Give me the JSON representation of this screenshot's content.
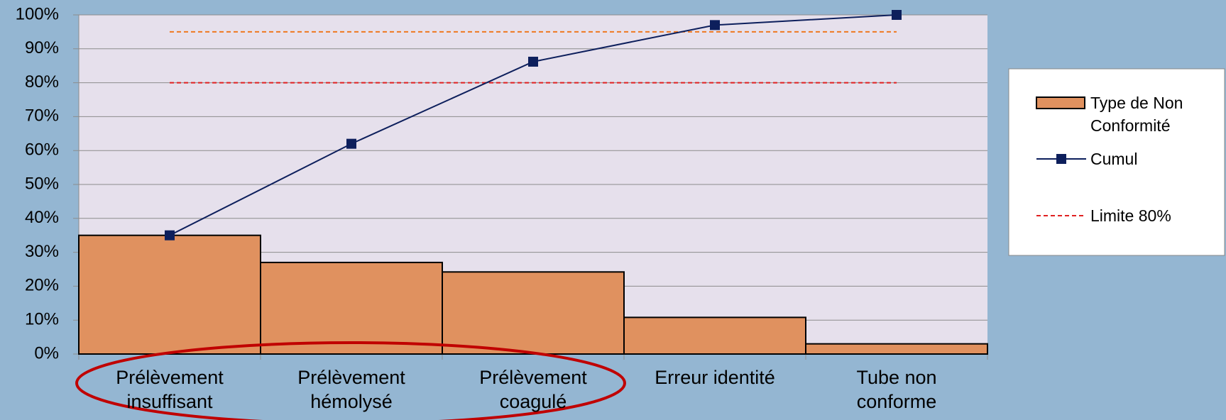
{
  "chart_data": {
    "type": "pareto",
    "categories": [
      "Prélèvement insuffisant",
      "Prélèvement hémolysé",
      "Prélèvement coagulé",
      "Erreur identité",
      "Tube non conforme"
    ],
    "series": [
      {
        "name": "Type de Non Conformité",
        "type": "bar",
        "color": "#e0915f",
        "values": [
          35,
          27,
          24.2,
          10.8,
          3
        ]
      },
      {
        "name": "Cumul",
        "type": "line",
        "color": "#0d1f5c",
        "values": [
          35,
          62,
          86.2,
          97,
          100
        ]
      }
    ],
    "reference_lines": [
      {
        "name": "Limite 80%",
        "value": 80,
        "color": "#e02020"
      },
      {
        "value": 95,
        "color": "#f07820"
      }
    ],
    "ylim": [
      0,
      100
    ],
    "yticks": [
      {
        "value": 0,
        "label": "0%"
      },
      {
        "value": 10,
        "label": "10%"
      },
      {
        "value": 20,
        "label": "20%"
      },
      {
        "value": 30,
        "label": "30%"
      },
      {
        "value": 40,
        "label": "40%"
      },
      {
        "value": 50,
        "label": "50%"
      },
      {
        "value": 60,
        "label": "60%"
      },
      {
        "value": 70,
        "label": "70%"
      },
      {
        "value": 80,
        "label": "80%"
      },
      {
        "value": 90,
        "label": "90%"
      },
      {
        "value": 100,
        "label": "100%"
      }
    ],
    "grid": true,
    "legend": "right"
  }
}
